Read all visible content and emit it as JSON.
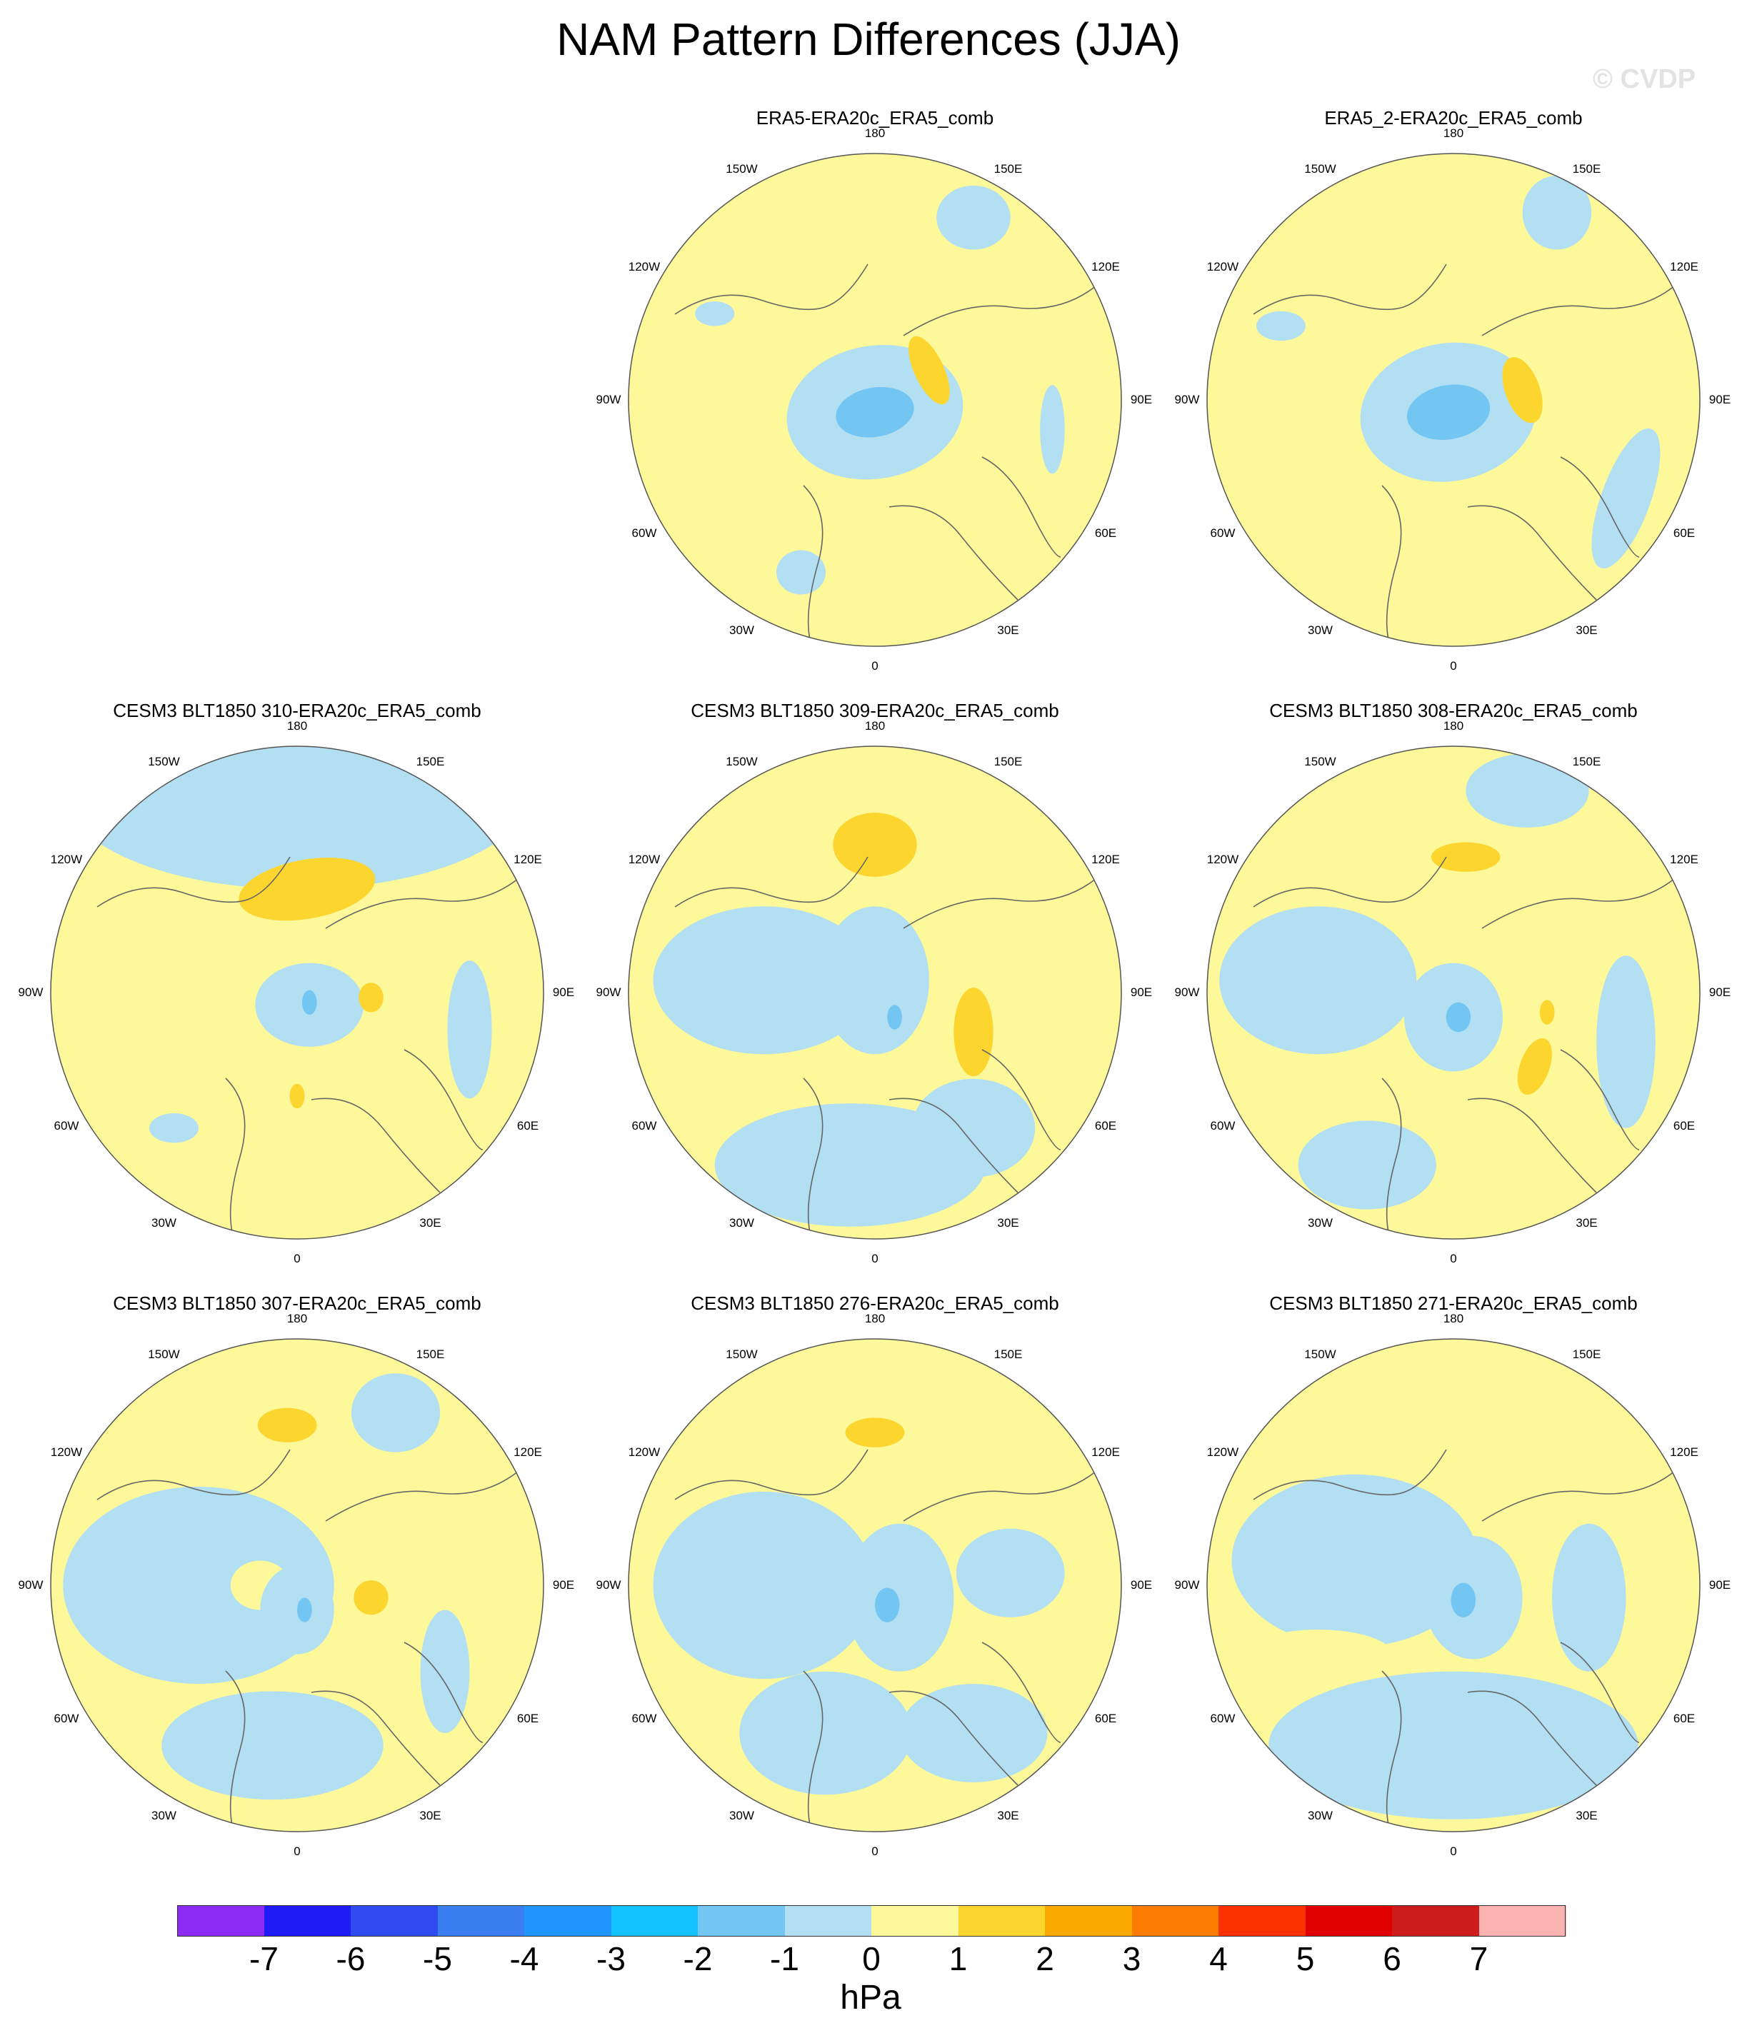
{
  "title": "NAM Pattern Differences (JJA)",
  "watermark": "© CVDP",
  "lon_labels": {
    "n180": "180",
    "n150e": "150E",
    "n120e": "120E",
    "n90e": "90E",
    "n60e": "60E",
    "n30e": "30E",
    "n0": "0",
    "n30w": "30W",
    "n60w": "60W",
    "n90w": "90W",
    "n120w": "120W",
    "n150w": "150W"
  },
  "panels": [
    {
      "title": "ERA5-ERA20c_ERA5_comb",
      "row": 0,
      "col": 1
    },
    {
      "title": "ERA5_2-ERA20c_ERA5_comb",
      "row": 0,
      "col": 2
    },
    {
      "title": "CESM3 BLT1850 310-ERA20c_ERA5_comb",
      "row": 1,
      "col": 0
    },
    {
      "title": "CESM3 BLT1850 309-ERA20c_ERA5_comb",
      "row": 1,
      "col": 1
    },
    {
      "title": "CESM3 BLT1850 308-ERA20c_ERA5_comb",
      "row": 1,
      "col": 2
    },
    {
      "title": "CESM3 BLT1850 307-ERA20c_ERA5_comb",
      "row": 2,
      "col": 0
    },
    {
      "title": "CESM3 BLT1850 276-ERA20c_ERA5_comb",
      "row": 2,
      "col": 1
    },
    {
      "title": "CESM3 BLT1850 271-ERA20c_ERA5_comb",
      "row": 2,
      "col": 2
    }
  ],
  "colorbar": {
    "colors": [
      "#8b2cf5",
      "#1f1cf7",
      "#2f4cf0",
      "#3a7ef2",
      "#2196ff",
      "#14c2ff",
      "#73c6f2",
      "#b3dff2",
      "#fdf89a",
      "#fcd52e",
      "#fba900",
      "#fb7c00",
      "#fb3200",
      "#e00000",
      "#cc1c1c",
      "#feb3b3"
    ],
    "labels": [
      "-7",
      "-6",
      "-5",
      "-4",
      "-3",
      "-2",
      "-1",
      "0",
      "1",
      "2",
      "3",
      "4",
      "5",
      "6",
      "7"
    ],
    "units": "hPa"
  }
}
